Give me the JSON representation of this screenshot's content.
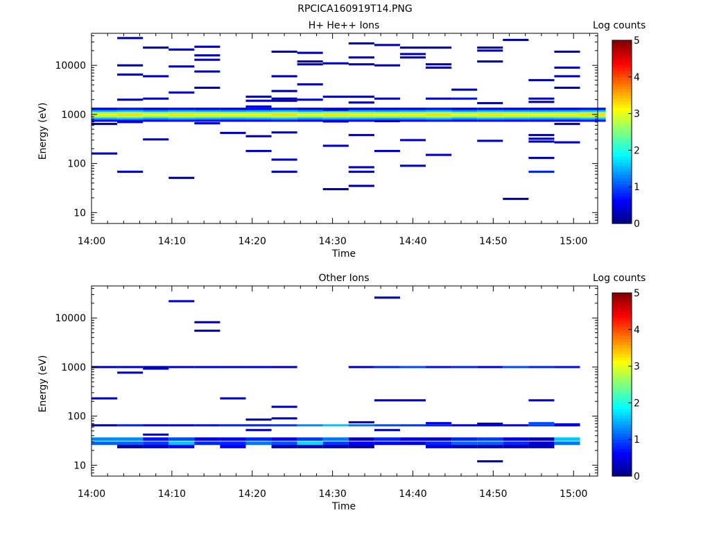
{
  "figure_title": "RPCICA160919T14.PNG",
  "colorscale": {
    "label": "Log counts",
    "min": 0,
    "max": 5,
    "ticks": [
      "0",
      "1",
      "2",
      "3",
      "4",
      "5"
    ]
  },
  "chart_data": [
    {
      "type": "heatmap",
      "title": "H+ He++ Ions",
      "xlabel": "Time",
      "ylabel": "Energy (eV)",
      "yscale": "log",
      "ylim": [
        6,
        45000
      ],
      "xlim_minutes": [
        0,
        63
      ],
      "x_tick_labels": [
        "14:00",
        "14:10",
        "14:20",
        "14:30",
        "14:40",
        "14:50",
        "15:00"
      ],
      "y_tick_labels": [
        "10",
        "100",
        "1000",
        "10000"
      ],
      "bin_width_minutes": 3.2,
      "cells_format": [
        "time_start",
        "energy_eV",
        "log_counts"
      ],
      "band": {
        "description": "continuous band across all times",
        "energies_eV": [
          750,
          830,
          910,
          1000,
          1090,
          1190,
          1300
        ],
        "log_counts": [
          0.6,
          1.5,
          2.6,
          3.2,
          2.6,
          1.5,
          0.6
        ]
      },
      "cells": [
        [
          "14:00",
          640,
          0.2
        ],
        [
          "14:00",
          160,
          0.3
        ],
        [
          "14:03",
          36000,
          0.3
        ],
        [
          "14:03",
          10000,
          0.2
        ],
        [
          "14:03",
          6500,
          0.3
        ],
        [
          "14:03",
          2000,
          0.3
        ],
        [
          "14:03",
          700,
          0.4
        ],
        [
          "14:03",
          68,
          0.4
        ],
        [
          "14:06",
          23000,
          0.3
        ],
        [
          "14:06",
          6000,
          0.3
        ],
        [
          "14:06",
          2100,
          0.4
        ],
        [
          "14:06",
          310,
          0.4
        ],
        [
          "14:09",
          21000,
          0.3
        ],
        [
          "14:09",
          9500,
          0.3
        ],
        [
          "14:09",
          2800,
          0.4
        ],
        [
          "14:09",
          51,
          0.2
        ],
        [
          "14:12",
          24000,
          0.3
        ],
        [
          "14:12",
          16000,
          0.3
        ],
        [
          "14:12",
          13000,
          0.3
        ],
        [
          "14:12",
          7500,
          0.3
        ],
        [
          "14:12",
          3500,
          0.3
        ],
        [
          "14:12",
          660,
          0.4
        ],
        [
          "14:16",
          420,
          0.4
        ],
        [
          "14:19",
          2300,
          0.2
        ],
        [
          "14:19",
          1900,
          0.4
        ],
        [
          "14:19",
          1450,
          0.4
        ],
        [
          "14:19",
          360,
          0.3
        ],
        [
          "14:19",
          180,
          0.4
        ],
        [
          "14:22",
          19000,
          0.3
        ],
        [
          "14:22",
          6000,
          0.3
        ],
        [
          "14:22",
          3000,
          0.2
        ],
        [
          "14:22",
          2100,
          0.3
        ],
        [
          "14:22",
          1900,
          0.2
        ],
        [
          "14:22",
          430,
          0.3
        ],
        [
          "14:22",
          120,
          0.4
        ],
        [
          "14:22",
          68,
          0.4
        ],
        [
          "14:25",
          18000,
          0.3
        ],
        [
          "14:25",
          12000,
          0.3
        ],
        [
          "14:25",
          10500,
          0.3
        ],
        [
          "14:25",
          4100,
          0.3
        ],
        [
          "14:25",
          2000,
          0.5
        ],
        [
          "14:28",
          11000,
          0.3
        ],
        [
          "14:28",
          2300,
          0.3
        ],
        [
          "14:28",
          1250,
          0.3
        ],
        [
          "14:28",
          720,
          0.4
        ],
        [
          "14:28",
          230,
          0.4
        ],
        [
          "14:28",
          30,
          0.2
        ],
        [
          "14:31",
          28000,
          0.3
        ],
        [
          "14:31",
          14500,
          0.3
        ],
        [
          "14:31",
          10500,
          0.3
        ],
        [
          "14:31",
          2300,
          0.3
        ],
        [
          "14:31",
          1750,
          0.3
        ],
        [
          "14:31",
          380,
          0.4
        ],
        [
          "14:31",
          84,
          0.4
        ],
        [
          "14:31",
          68,
          0.4
        ],
        [
          "14:31",
          35,
          0.2
        ],
        [
          "14:35",
          26000,
          0.3
        ],
        [
          "14:35",
          10000,
          0.3
        ],
        [
          "14:35",
          2100,
          0.4
        ],
        [
          "14:35",
          730,
          0.3
        ],
        [
          "14:35",
          180,
          0.4
        ],
        [
          "14:38",
          23000,
          0.3
        ],
        [
          "14:38",
          17000,
          0.3
        ],
        [
          "14:38",
          14500,
          0.3
        ],
        [
          "14:38",
          300,
          0.4
        ],
        [
          "14:38",
          90,
          0.4
        ],
        [
          "14:41",
          23000,
          0.3
        ],
        [
          "14:41",
          10500,
          0.2
        ],
        [
          "14:41",
          9000,
          0.3
        ],
        [
          "14:41",
          2100,
          0.5
        ],
        [
          "14:41",
          150,
          0.4
        ],
        [
          "14:44",
          3200,
          0.3
        ],
        [
          "14:44",
          2100,
          0.7
        ],
        [
          "14:47",
          23000,
          0.3
        ],
        [
          "14:47",
          20000,
          0.3
        ],
        [
          "14:47",
          12000,
          0.3
        ],
        [
          "14:47",
          1700,
          0.4
        ],
        [
          "14:47",
          290,
          0.4
        ],
        [
          "14:51",
          33000,
          0.2
        ],
        [
          "14:51",
          19,
          0.2
        ],
        [
          "14:54",
          5000,
          0.3
        ],
        [
          "14:54",
          2100,
          0.4
        ],
        [
          "14:54",
          1800,
          0.3
        ],
        [
          "14:54",
          380,
          0.4
        ],
        [
          "14:54",
          320,
          0.3
        ],
        [
          "14:54",
          280,
          0.3
        ],
        [
          "14:54",
          130,
          0.3
        ],
        [
          "14:54",
          68,
          0.8
        ],
        [
          "14:57",
          19000,
          0.3
        ],
        [
          "14:57",
          9000,
          0.3
        ],
        [
          "14:57",
          6000,
          0.3
        ],
        [
          "14:57",
          3500,
          0.3
        ],
        [
          "14:57",
          640,
          0.3
        ],
        [
          "14:57",
          270,
          0.4
        ]
      ]
    },
    {
      "type": "heatmap",
      "title": "Other Ions",
      "xlabel": "Time",
      "ylabel": "Energy (eV)",
      "yscale": "log",
      "ylim": [
        6,
        45000
      ],
      "xlim_minutes": [
        0,
        63
      ],
      "x_tick_labels": [
        "14:00",
        "14:10",
        "14:20",
        "14:30",
        "14:40",
        "14:50",
        "15:00"
      ],
      "y_tick_labels": [
        "10",
        "100",
        "1000",
        "10000"
      ],
      "bin_width_minutes": 3.2,
      "cells_format": [
        "time_start",
        "energy_eV",
        "log_counts"
      ],
      "columns_format": [
        "time_start",
        "v_1000eV",
        "v_65eV",
        "v_34eV",
        "v_28eV",
        "v_24eV"
      ],
      "columns": [
        [
          "14:00",
          0.4,
          0.3,
          1.3,
          1.1,
          null
        ],
        [
          "14:03",
          0.5,
          0.8,
          1.3,
          1.1,
          0.2
        ],
        [
          "14:06",
          0.3,
          0.6,
          0.7,
          0.9,
          0.4
        ],
        [
          "14:09",
          0.5,
          0.6,
          1.0,
          1.6,
          0.6
        ],
        [
          "14:12",
          0.6,
          0.7,
          0.5,
          0.8,
          null
        ],
        [
          "14:16",
          0.5,
          0.8,
          0.6,
          0.8,
          0.6
        ],
        [
          "14:19",
          0.6,
          0.8,
          0.8,
          1.2,
          null
        ],
        [
          "14:22",
          0.4,
          0.9,
          0.6,
          1.0,
          0.3
        ],
        [
          "14:25",
          null,
          1.3,
          0.9,
          1.7,
          0.3
        ],
        [
          "14:28",
          null,
          1.6,
          1.2,
          0.9,
          0.3
        ],
        [
          "14:31",
          0.4,
          1.2,
          0.3,
          0.6,
          0.2
        ],
        [
          "14:35",
          0.8,
          1.0,
          0.8,
          0.6,
          null
        ],
        [
          "14:38",
          1.0,
          0.9,
          0.5,
          0.5,
          null
        ],
        [
          "14:41",
          0.7,
          0.8,
          0.4,
          0.8,
          0.5
        ],
        [
          "14:44",
          0.8,
          0.6,
          0.8,
          1.1,
          0.3
        ],
        [
          "14:47",
          0.6,
          0.5,
          0.9,
          1.1,
          0.3
        ],
        [
          "14:51",
          1.0,
          0.6,
          0.5,
          0.8,
          0.3
        ],
        [
          "14:54",
          0.8,
          0.9,
          0.3,
          0.4,
          0.3
        ],
        [
          "14:57",
          0.7,
          0.5,
          1.6,
          1.2,
          null
        ]
      ],
      "cells": [
        [
          "14:00",
          230,
          0.4
        ],
        [
          "14:03",
          770,
          0.4
        ],
        [
          "14:06",
          42,
          0.4
        ],
        [
          "14:06",
          930,
          0.4
        ],
        [
          "14:09",
          22000,
          0.4
        ],
        [
          "14:12",
          8200,
          0.3
        ],
        [
          "14:12",
          5500,
          0.4
        ],
        [
          "14:16",
          230,
          0.4
        ],
        [
          "14:19",
          85,
          0.4
        ],
        [
          "14:19",
          52,
          0.4
        ],
        [
          "14:22",
          155,
          0.4
        ],
        [
          "14:22",
          90,
          0.4
        ],
        [
          "14:31",
          75,
          0.4
        ],
        [
          "14:35",
          26000,
          0.3
        ],
        [
          "14:35",
          210,
          0.4
        ],
        [
          "14:35",
          52,
          0.4
        ],
        [
          "14:38",
          210,
          0.4
        ],
        [
          "14:41",
          72,
          0.5
        ],
        [
          "14:47",
          70,
          0.3
        ],
        [
          "14:47",
          12,
          0.2
        ],
        [
          "14:54",
          210,
          0.4
        ],
        [
          "14:54",
          72,
          1.0
        ],
        [
          "14:57",
          68,
          0.5
        ]
      ]
    }
  ]
}
